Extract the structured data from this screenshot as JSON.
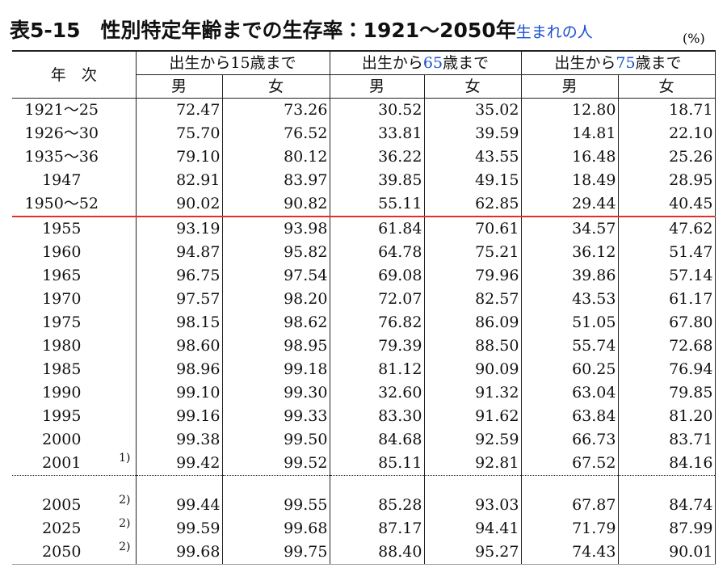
{
  "header": {
    "title": "表5-15　性別特定年齢までの生存率：1921～2050年",
    "title_note": "生まれの人",
    "unit": "(%)"
  },
  "table": {
    "year_header": "年　次",
    "groups": [
      {
        "parts": [
          "出生から",
          "15",
          "歳まで"
        ],
        "columns": [
          "男",
          "女"
        ]
      },
      {
        "parts": [
          "出生から",
          "65",
          "歳まで"
        ],
        "columns": [
          "男",
          "女"
        ]
      },
      {
        "parts": [
          "出生から",
          "75",
          "歳まで"
        ],
        "columns": [
          "男",
          "女"
        ]
      }
    ],
    "rows": [
      {
        "year": "1921～25",
        "values": [
          "72.47",
          "73.26",
          "30.52",
          "35.02",
          "12.80",
          "18.71"
        ]
      },
      {
        "year": "1926～30",
        "values": [
          "75.70",
          "76.52",
          "33.81",
          "39.59",
          "14.81",
          "22.10"
        ]
      },
      {
        "year": "1935～36",
        "values": [
          "79.10",
          "80.12",
          "36.22",
          "43.55",
          "16.48",
          "25.26"
        ]
      },
      {
        "year": "1947",
        "values": [
          "82.91",
          "83.97",
          "39.85",
          "49.15",
          "18.49",
          "28.95"
        ]
      },
      {
        "year": "1950～52",
        "values": [
          "90.02",
          "90.82",
          "55.11",
          "62.85",
          "29.44",
          "40.45"
        ]
      },
      {
        "year": "1955",
        "values": [
          "93.19",
          "93.98",
          "61.84",
          "70.61",
          "34.57",
          "47.62"
        ]
      },
      {
        "year": "1960",
        "values": [
          "94.87",
          "95.82",
          "64.78",
          "75.21",
          "36.12",
          "51.47"
        ]
      },
      {
        "year": "1965",
        "values": [
          "96.75",
          "97.54",
          "69.08",
          "79.96",
          "39.86",
          "57.14"
        ]
      },
      {
        "year": "1970",
        "values": [
          "97.57",
          "98.20",
          "72.07",
          "82.57",
          "43.53",
          "61.17"
        ]
      },
      {
        "year": "1975",
        "values": [
          "98.15",
          "98.62",
          "76.82",
          "86.09",
          "51.05",
          "67.80"
        ]
      },
      {
        "year": "1980",
        "values": [
          "98.60",
          "98.95",
          "79.39",
          "88.50",
          "55.74",
          "72.68"
        ]
      },
      {
        "year": "1985",
        "values": [
          "98.96",
          "99.18",
          "81.12",
          "90.09",
          "60.25",
          "76.94"
        ]
      },
      {
        "year": "1990",
        "values": [
          "99.10",
          "99.30",
          "32.60",
          "91.32",
          "63.04",
          "79.85"
        ]
      },
      {
        "year": "1995",
        "values": [
          "99.16",
          "99.33",
          "83.30",
          "91.62",
          "63.84",
          "81.20"
        ]
      },
      {
        "year": "2000",
        "values": [
          "99.38",
          "99.50",
          "84.68",
          "92.59",
          "66.73",
          "83.71"
        ]
      },
      {
        "year": "2001",
        "note": "1)",
        "values": [
          "99.42",
          "99.52",
          "85.11",
          "92.81",
          "67.52",
          "84.16"
        ]
      },
      {
        "year": "2005",
        "note": "2)",
        "values": [
          "99.44",
          "99.55",
          "85.28",
          "93.03",
          "67.87",
          "84.74"
        ]
      },
      {
        "year": "2025",
        "note": "2)",
        "values": [
          "99.59",
          "99.68",
          "87.17",
          "94.41",
          "71.79",
          "87.99"
        ]
      },
      {
        "year": "2050",
        "note": "2)",
        "values": [
          "99.68",
          "99.75",
          "88.40",
          "95.27",
          "74.43",
          "90.01"
        ]
      }
    ]
  }
}
